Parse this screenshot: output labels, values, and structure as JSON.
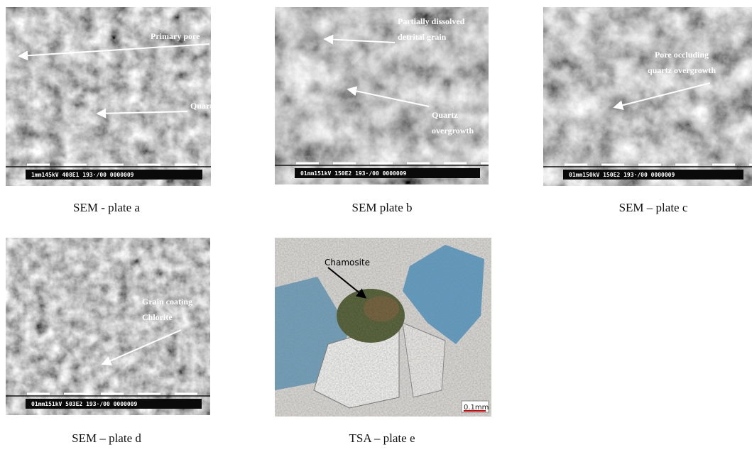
{
  "panels": [
    {
      "caption": "SEM - plate a",
      "scale_text": "1mm145kV 408E1 193·/00 0000009",
      "annotations": [
        {
          "lines": [
            "Primary pore"
          ]
        },
        {
          "lines": [
            "Quartz"
          ]
        }
      ]
    },
    {
      "caption": "SEM plate b",
      "scale_text": "01mm151kV 150E2 193·/00 0000009",
      "annotations": [
        {
          "lines": [
            "Partially dissolved",
            "detrital grain"
          ]
        },
        {
          "lines": [
            "Quartz",
            "overgrowth"
          ]
        }
      ]
    },
    {
      "caption": "SEM – plate c",
      "scale_text": "01mm150kV 150E2 193·/00 0000009",
      "annotations": [
        {
          "lines": [
            "Pore occluding",
            "quartz overgrowth"
          ]
        }
      ]
    },
    {
      "caption": "SEM – plate d",
      "scale_text": "01mm151kV 503E2 193·/00 0000009",
      "annotations": [
        {
          "lines": [
            "Grain coating",
            "Chlorite"
          ]
        }
      ]
    },
    {
      "caption": "TSA – plate e",
      "scale_text": "0.1mm",
      "annotations": [
        {
          "lines": [
            "Chamosite"
          ]
        }
      ]
    }
  ]
}
